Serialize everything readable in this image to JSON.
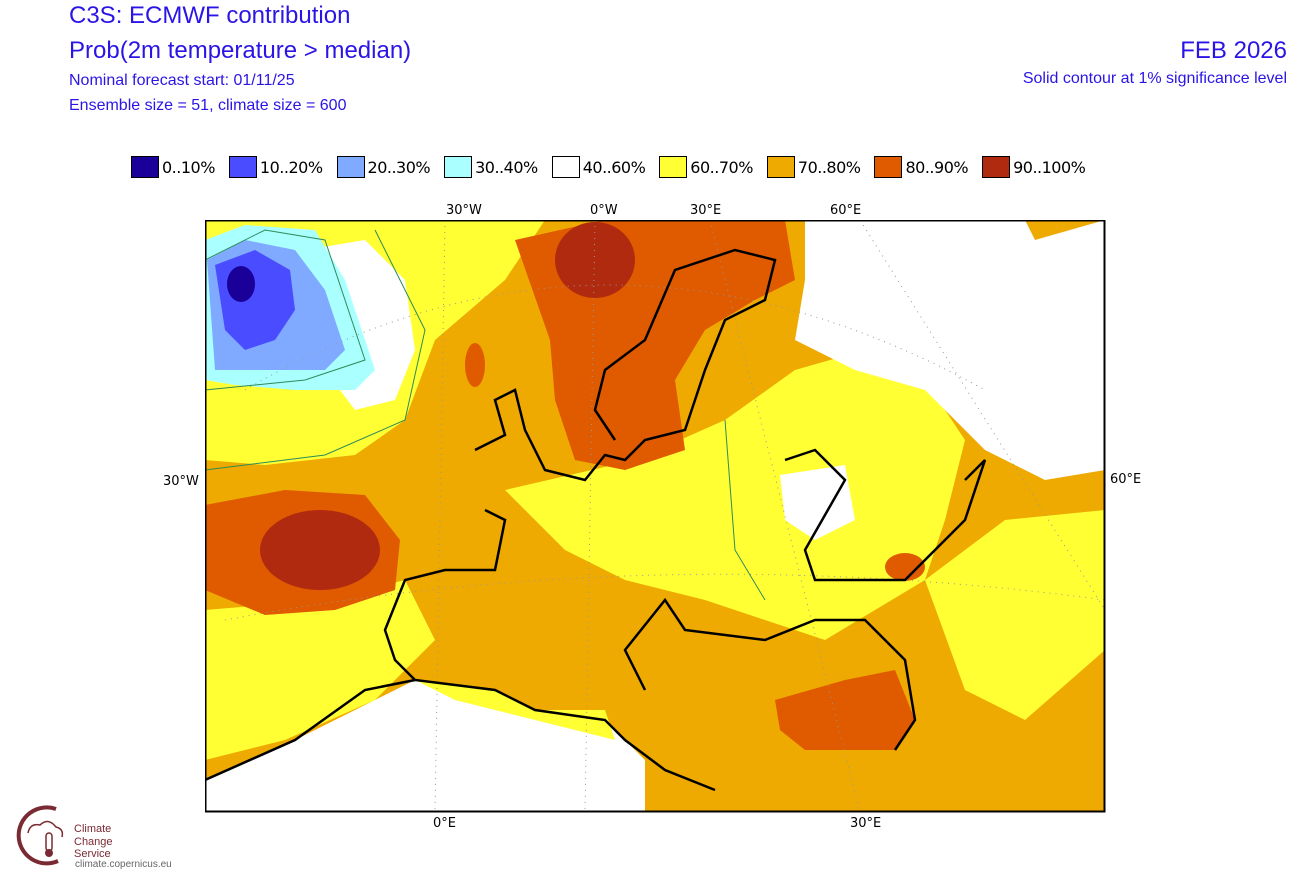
{
  "header": {
    "title": "C3S: ECMWF contribution",
    "subtitle": "Prob(2m temperature > median)",
    "forecast_start": "Nominal forecast start: 01/11/25",
    "ensemble": "Ensemble size = 51, climate size = 600",
    "month": "FEB 2026",
    "significance": "Solid contour at 1% significance level"
  },
  "legend": [
    {
      "label": "0..10%",
      "color": "#1a0099"
    },
    {
      "label": "10..20%",
      "color": "#4a4cff"
    },
    {
      "label": "20..30%",
      "color": "#80aaff"
    },
    {
      "label": "30..40%",
      "color": "#aaffff"
    },
    {
      "label": "40..60%",
      "color": "#ffffff"
    },
    {
      "label": "60..70%",
      "color": "#ffff33"
    },
    {
      "label": "70..80%",
      "color": "#eeaa00"
    },
    {
      "label": "80..90%",
      "color": "#e05a00"
    },
    {
      "label": "90..100%",
      "color": "#b02a10"
    }
  ],
  "axes": {
    "top": [
      "30°W",
      "0°W",
      "30°E",
      "60°E"
    ],
    "left": "30°W",
    "right": "60°E",
    "bottom": [
      "0°E",
      "30°E"
    ]
  },
  "logo": {
    "line1": "Climate",
    "line2": "Change Service",
    "url": "climate.copernicus.eu"
  }
}
